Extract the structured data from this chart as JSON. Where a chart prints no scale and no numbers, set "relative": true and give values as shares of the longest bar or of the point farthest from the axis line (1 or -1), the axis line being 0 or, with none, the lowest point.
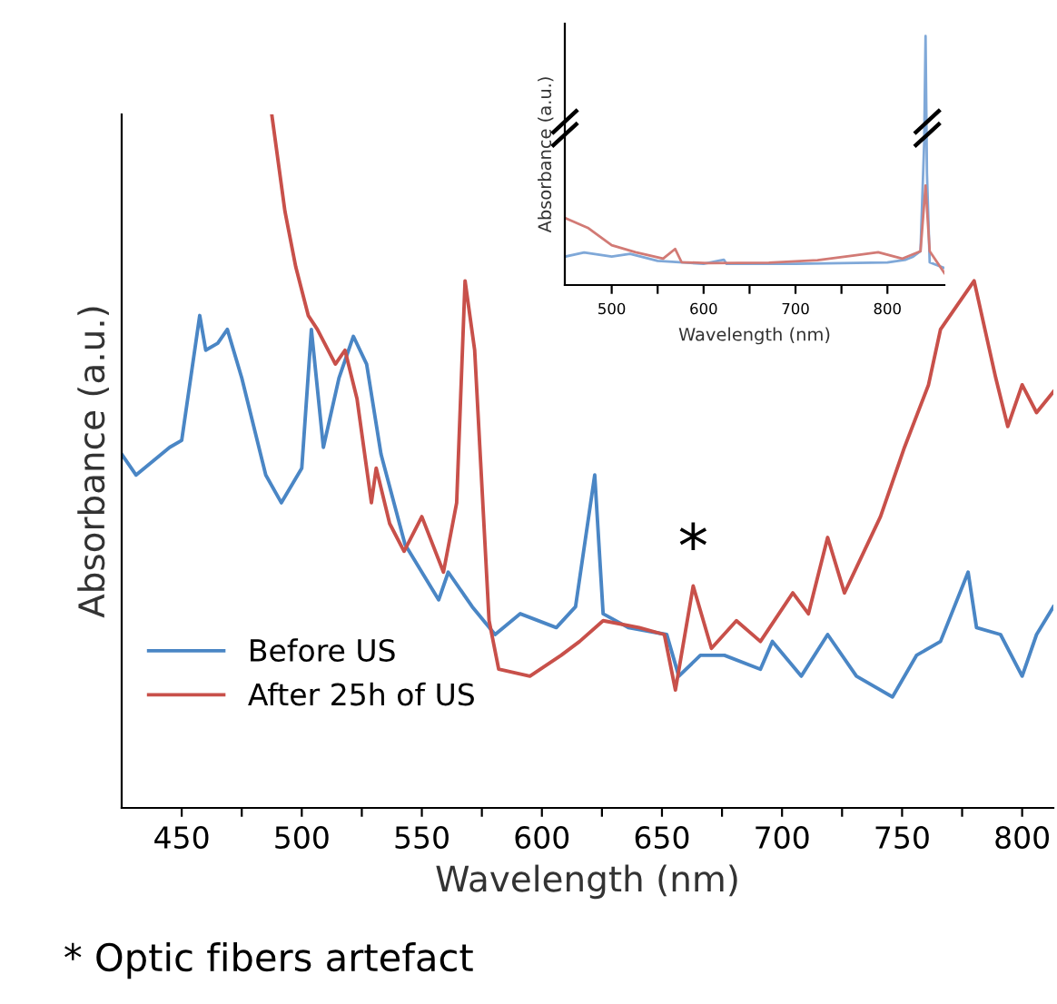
{
  "chart_data": [
    {
      "type": "line",
      "xlabel": "Wavelength (nm)",
      "ylabel": "Absorbance (a.u.)",
      "relative": true,
      "xlim": [
        425,
        813
      ],
      "xticks": [
        450,
        {
          "value": 475,
          "label": null
        },
        500,
        {
          "value": 525,
          "label": null
        },
        550,
        {
          "value": 575,
          "label": null
        },
        600,
        {
          "value": 625,
          "label": null
        },
        650,
        {
          "value": 675,
          "label": null
        },
        700,
        {
          "value": 725,
          "label": null
        },
        750,
        {
          "value": 775,
          "label": null
        },
        800
      ],
      "legend": "bottom left",
      "grid": false,
      "series": [
        {
          "name": "Before US",
          "color": "#4a86c5",
          "x": [
            425,
            431,
            445,
            450,
            457.5,
            460,
            465,
            469,
            475,
            485,
            491.5,
            500,
            504,
            509,
            515.5,
            521.5,
            527,
            533,
            543,
            557,
            561,
            571,
            580.5,
            591,
            606,
            614,
            622,
            625.5,
            636,
            652,
            657,
            666,
            676,
            691,
            696,
            708,
            719,
            731,
            746,
            756,
            766,
            777.5,
            781,
            791,
            800,
            806,
            813
          ],
          "values": [
            0.51,
            0.48,
            0.52,
            0.53,
            0.71,
            0.66,
            0.67,
            0.69,
            0.62,
            0.48,
            0.44,
            0.49,
            0.69,
            0.52,
            0.62,
            0.68,
            0.64,
            0.51,
            0.38,
            0.3,
            0.34,
            0.29,
            0.25,
            0.28,
            0.26,
            0.29,
            0.48,
            0.28,
            0.26,
            0.25,
            0.19,
            0.22,
            0.22,
            0.2,
            0.24,
            0.19,
            0.25,
            0.19,
            0.16,
            0.22,
            0.24,
            0.34,
            0.26,
            0.25,
            0.19,
            0.25,
            0.29
          ]
        },
        {
          "name": "After 25h of US",
          "color": "#c8504a",
          "x": [
            487.5,
            493,
            497.5,
            502.7,
            506.5,
            514,
            518,
            523,
            529,
            531,
            536.6,
            542.6,
            550,
            559,
            564.5,
            568,
            572,
            578,
            582,
            595,
            608,
            615.7,
            625.5,
            640.5,
            651,
            655.6,
            663,
            670.6,
            681,
            691,
            704.5,
            711,
            719,
            726,
            741,
            751,
            761,
            766,
            772,
            780,
            789,
            794,
            800,
            806,
            813
          ],
          "values": [
            1.0,
            0.86,
            0.78,
            0.71,
            0.69,
            0.64,
            0.66,
            0.59,
            0.44,
            0.49,
            0.41,
            0.37,
            0.42,
            0.34,
            0.44,
            0.76,
            0.66,
            0.27,
            0.2,
            0.19,
            0.22,
            0.24,
            0.27,
            0.26,
            0.25,
            0.17,
            0.32,
            0.23,
            0.27,
            0.24,
            0.31,
            0.28,
            0.39,
            0.31,
            0.42,
            0.52,
            0.61,
            0.69,
            0.72,
            0.76,
            0.62,
            0.55,
            0.61,
            0.57,
            0.6
          ]
        }
      ],
      "annotations": [
        {
          "text": "*",
          "x": 663,
          "y": 0.32
        },
        "* Optic fibers artefact"
      ]
    },
    {
      "type": "line",
      "xlabel": "Wavelength (nm)",
      "ylabel": "Absorbance (a.u.)",
      "relative": true,
      "xlim": [
        449,
        862
      ],
      "xticks": [
        500,
        {
          "value": 550,
          "label": null
        },
        600,
        {
          "value": 650,
          "label": null
        },
        700,
        {
          "value": 750,
          "label": null
        },
        800
      ],
      "grid": false,
      "series": [
        {
          "color": "#7fa8d8",
          "x": [
            449,
            470,
            500,
            520,
            550,
            600,
            622,
            625,
            700,
            800,
            820,
            828,
            836,
            840,
            841.5,
            843,
            846,
            862
          ],
          "values": [
            0.114,
            0.131,
            0.114,
            0.125,
            0.097,
            0.085,
            0.102,
            0.085,
            0.085,
            0.091,
            0.102,
            0.114,
            0.136,
            0.57,
            1.0,
            0.45,
            0.091,
            0.068
          ]
        },
        {
          "color": "#d27a75",
          "x": [
            449,
            474,
            500,
            526,
            556,
            569,
            576,
            605,
            671,
            724,
            764,
            790,
            816,
            836,
            841.5,
            846,
            862
          ],
          "values": [
            0.27,
            0.23,
            0.16,
            0.132,
            0.106,
            0.145,
            0.092,
            0.088,
            0.09,
            0.1,
            0.119,
            0.132,
            0.106,
            0.136,
            0.4,
            0.136,
            0.048
          ]
        }
      ]
    }
  ]
}
